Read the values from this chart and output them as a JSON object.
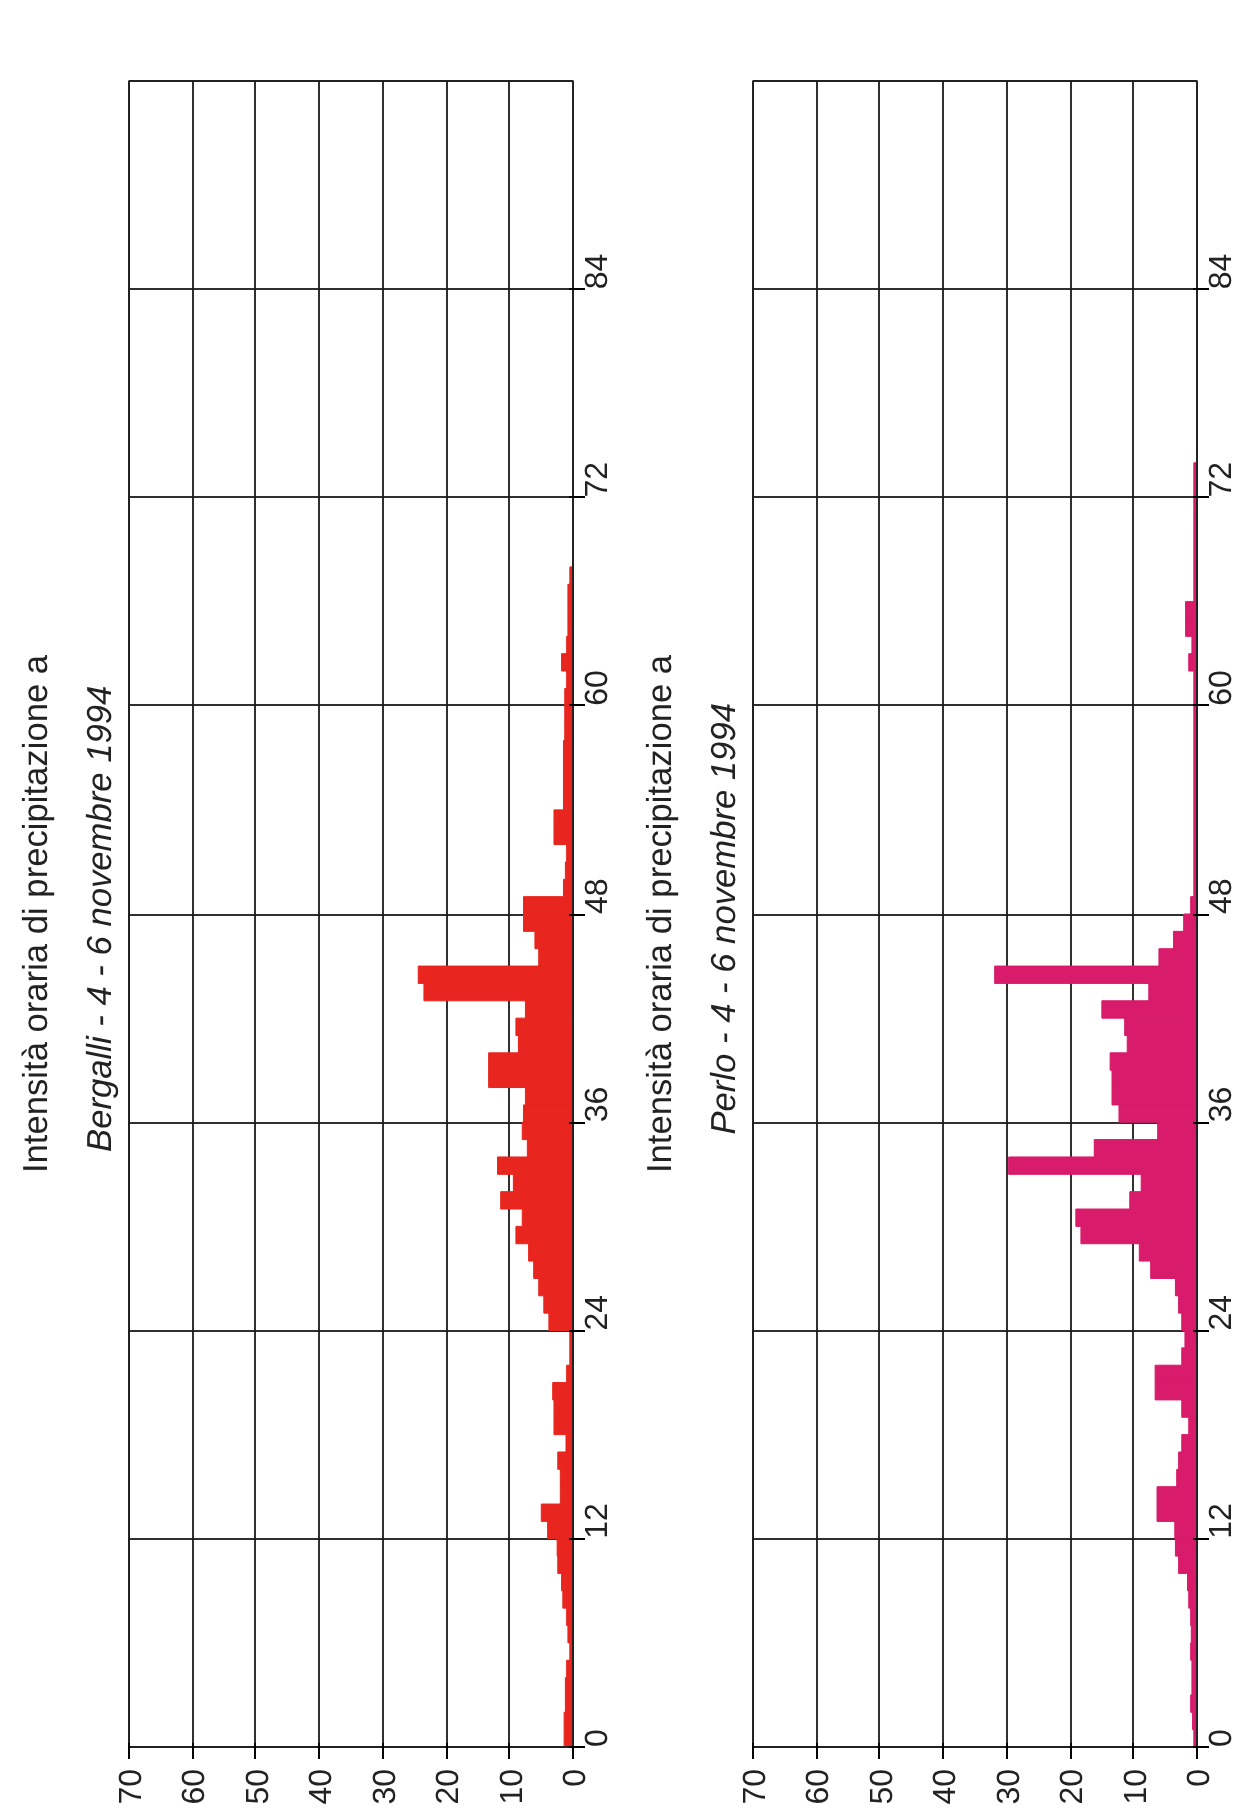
{
  "chart_data": [
    {
      "type": "bar",
      "orientation": "horizontal",
      "title": "Intensità oraria di precipitazione a",
      "subtitle": "Bergalli -  4 - 6 novembre 1994",
      "color": "#e8251e",
      "grid": true,
      "xlim": [
        70,
        0
      ],
      "xticks": [
        0,
        10,
        20,
        30,
        40,
        50,
        60,
        70
      ],
      "ylim": [
        0,
        96
      ],
      "yticks": [
        0,
        12,
        24,
        36,
        48,
        60,
        72,
        84
      ],
      "x": [
        0.5,
        1.5,
        2.5,
        3.5,
        4.5,
        5.5,
        6.5,
        7.5,
        8.5,
        9.5,
        10.5,
        11.5,
        12.5,
        13.5,
        14.5,
        15.5,
        16.5,
        17.5,
        18.5,
        19.5,
        20.5,
        21.5,
        22.5,
        23.5,
        24.5,
        25.5,
        26.5,
        27.5,
        28.5,
        29.5,
        30.5,
        31.5,
        32.5,
        33.5,
        34.5,
        35.5,
        36.5,
        37.5,
        38.5,
        39.5,
        40.5,
        41.5,
        42.5,
        43.5,
        44.5,
        45.5,
        46.5,
        47.5,
        48.5,
        49.5,
        50.5,
        51.5,
        52.5,
        53.5,
        54.5,
        55.5,
        56.5,
        57.5,
        58.5,
        59.5,
        60.5,
        61.5,
        62.5,
        63.5,
        64.5,
        65.5,
        66.5,
        67.5
      ],
      "values": [
        1.4,
        1.4,
        1.2,
        1.2,
        1.0,
        0.5,
        0.8,
        1.0,
        1.6,
        1.8,
        2.4,
        2.5,
        4.0,
        5.0,
        2.0,
        2.0,
        2.4,
        1.1,
        3.0,
        3.0,
        3.2,
        1.0,
        0.5,
        0.5,
        3.8,
        4.6,
        5.4,
        6.2,
        7.0,
        9.0,
        8.0,
        11.4,
        9.4,
        11.9,
        7.2,
        8.0,
        7.8,
        7.5,
        13.3,
        13.3,
        8.6,
        9.0,
        7.5,
        23.5,
        24.4,
        5.4,
        6.0,
        7.8,
        7.8,
        1.5,
        1.2,
        1.0,
        3.0,
        3.0,
        1.5,
        1.5,
        1.5,
        1.5,
        1.3,
        1.3,
        1.3,
        1.0,
        1.8,
        1.0,
        0.8,
        0.8,
        0.8,
        0.5
      ]
    },
    {
      "type": "bar",
      "orientation": "horizontal",
      "title": "Intensità oraria di precipitazione a",
      "subtitle": "Perlo -  4 - 6 novembre 1994",
      "color": "#d81b6a",
      "grid": true,
      "xlim": [
        70,
        0
      ],
      "xticks": [
        0,
        10,
        20,
        30,
        40,
        50,
        60,
        70
      ],
      "ylim": [
        0,
        96
      ],
      "yticks": [
        0,
        12,
        24,
        36,
        48,
        60,
        72,
        84
      ],
      "x": [
        0.5,
        1.5,
        2.5,
        3.5,
        4.5,
        5.5,
        6.5,
        7.5,
        8.5,
        9.5,
        10.5,
        11.5,
        12.5,
        13.5,
        14.5,
        15.5,
        16.5,
        17.5,
        18.5,
        19.5,
        20.5,
        21.5,
        22.5,
        23.5,
        24.5,
        25.5,
        26.5,
        27.5,
        28.5,
        29.5,
        30.5,
        31.5,
        32.5,
        33.5,
        34.5,
        35.5,
        36.5,
        37.5,
        38.5,
        39.5,
        40.5,
        41.5,
        42.5,
        43.5,
        44.5,
        45.5,
        46.5,
        47.5,
        48.5,
        49.5,
        50.5,
        51.5,
        52.5,
        53.5,
        54.5,
        55.5,
        56.5,
        57.5,
        58.5,
        59.5,
        60.5,
        61.5,
        62.5,
        63.5,
        64.5,
        65.5,
        66.5,
        67.5,
        68.5,
        69.5,
        70.5,
        71.5,
        72.5,
        73.5
      ],
      "values": [
        0.5,
        0.7,
        1.0,
        0.8,
        0.8,
        1.0,
        0.9,
        1.0,
        1.3,
        1.5,
        2.9,
        3.4,
        3.5,
        6.3,
        6.3,
        3.2,
        2.9,
        2.4,
        1.3,
        2.4,
        6.6,
        6.6,
        2.4,
        1.9,
        2.4,
        2.9,
        3.4,
        7.3,
        9.1,
        18.3,
        19.1,
        10.6,
        8.8,
        29.7,
        16.2,
        6.2,
        12.3,
        13.4,
        13.4,
        13.7,
        11.0,
        11.4,
        15.0,
        7.6,
        31.9,
        6.0,
        3.7,
        2.1,
        1.0,
        0.5,
        0.5,
        0.5,
        0.5,
        0.5,
        0.5,
        0.5,
        0.5,
        0.5,
        0.5,
        0.5,
        0.5,
        0.5,
        1.3,
        0.8,
        1.8,
        1.8,
        0.5,
        0.5,
        0.5,
        0.5,
        0.5,
        0.5,
        0.5,
        0.5
      ]
    }
  ]
}
